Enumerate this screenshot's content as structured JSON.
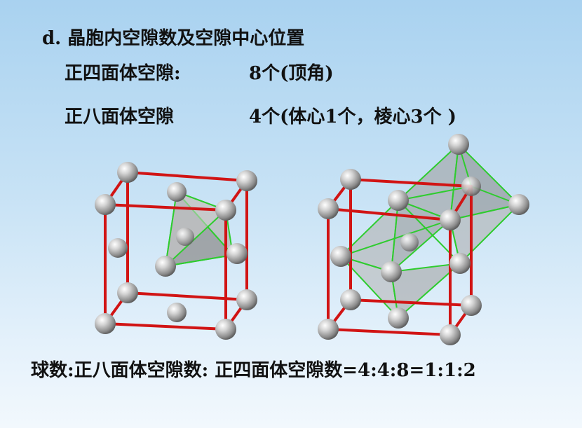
{
  "heading": "d. 晶胞内空隙数及空隙中心位置",
  "tetrahedral": {
    "label": "正四面体空隙:",
    "value": "8个(顶角)"
  },
  "octahedral": {
    "label": "正八面体空隙",
    "value": "4个(体心1个，棱心3个 )"
  },
  "ratio": "球数:正八面体空隙数: 正四面体空隙数=4:4:8=1:1:2",
  "colors": {
    "edge": "#d11414",
    "void_edge": "#2ecc2e",
    "sphere": "#9a9a9a",
    "void_fill": "#a8a8a8"
  }
}
